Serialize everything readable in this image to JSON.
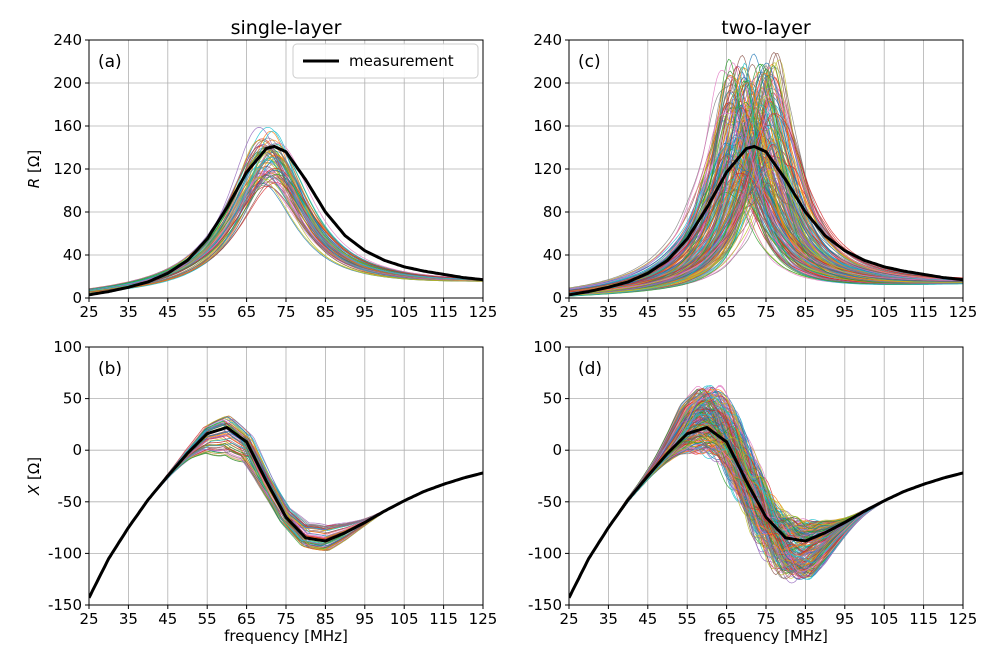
{
  "chart_data": [
    {
      "id": "a",
      "type": "line",
      "panel_label": "(a)",
      "title": "single-layer",
      "ylabel_var": "R",
      "ylabel_unit": " [Ω]",
      "xlabel": "",
      "xlim": [
        25,
        125
      ],
      "ylim": [
        0,
        240
      ],
      "xticks": [
        25,
        35,
        45,
        55,
        65,
        75,
        85,
        95,
        105,
        115,
        125
      ],
      "yticks": [
        0,
        40,
        80,
        120,
        160,
        200,
        240
      ],
      "grid": true,
      "legend": {
        "label": "measurement",
        "placement": "top-right"
      },
      "series": [
        {
          "name": "measurement",
          "x": [
            25,
            30,
            35,
            40,
            45,
            50,
            55,
            60,
            65,
            70,
            72,
            75,
            80,
            85,
            90,
            95,
            100,
            105,
            110,
            115,
            120,
            125
          ],
          "values": [
            3,
            6,
            10,
            15,
            23,
            35,
            55,
            84,
            117,
            139,
            141,
            136,
            110,
            80,
            58,
            44,
            35,
            29,
            25,
            22,
            19,
            17
          ]
        }
      ],
      "ensemble": {
        "count": 70,
        "peak_range": [
          102,
          161
        ],
        "peak_x_range": [
          68,
          73
        ],
        "style": "thin multicolor lines"
      }
    },
    {
      "id": "b",
      "type": "line",
      "panel_label": "(b)",
      "title": "",
      "ylabel_var": "X",
      "ylabel_unit": " [Ω]",
      "xlabel": "frequency [MHz]",
      "xlim": [
        25,
        125
      ],
      "ylim": [
        -150,
        100
      ],
      "xticks": [
        25,
        35,
        45,
        55,
        65,
        75,
        85,
        95,
        105,
        115,
        125
      ],
      "yticks": [
        -150,
        -100,
        -50,
        0,
        50,
        100
      ],
      "grid": true,
      "series": [
        {
          "name": "measurement",
          "x": [
            25,
            30,
            35,
            40,
            45,
            50,
            55,
            60,
            65,
            70,
            75,
            80,
            85,
            90,
            95,
            100,
            105,
            110,
            115,
            120,
            125
          ],
          "values": [
            -143,
            -105,
            -75,
            -48,
            -25,
            -3,
            16,
            22,
            8,
            -30,
            -65,
            -85,
            -88,
            -80,
            -70,
            -59,
            -49,
            -40,
            -33,
            -27,
            -22
          ]
        }
      ],
      "ensemble": {
        "count": 70,
        "peak_range": [
          -5,
          34
        ],
        "trough_range": [
          -98,
          -72
        ],
        "style": "thin multicolor lines"
      }
    },
    {
      "id": "c",
      "type": "line",
      "panel_label": "(c)",
      "title": "two-layer",
      "ylabel_var": "",
      "ylabel_unit": "",
      "xlabel": "",
      "xlim": [
        25,
        125
      ],
      "ylim": [
        0,
        240
      ],
      "xticks": [
        25,
        35,
        45,
        55,
        65,
        75,
        85,
        95,
        105,
        115,
        125
      ],
      "yticks": [
        0,
        40,
        80,
        120,
        160,
        200,
        240
      ],
      "grid": true,
      "series": [
        {
          "name": "measurement",
          "x": [
            25,
            30,
            35,
            40,
            45,
            50,
            55,
            60,
            65,
            70,
            72,
            75,
            80,
            85,
            90,
            95,
            100,
            105,
            110,
            115,
            120,
            125
          ],
          "values": [
            3,
            6,
            10,
            15,
            23,
            35,
            55,
            84,
            117,
            139,
            141,
            136,
            110,
            80,
            58,
            44,
            35,
            29,
            25,
            22,
            19,
            17
          ]
        }
      ],
      "ensemble": {
        "count": 220,
        "peak_range": [
          100,
          220
        ],
        "peak_x_range": [
          65,
          78
        ],
        "style": "thin multicolor lines"
      }
    },
    {
      "id": "d",
      "type": "line",
      "panel_label": "(d)",
      "title": "",
      "ylabel_var": "",
      "ylabel_unit": "",
      "xlabel": "frequency [MHz]",
      "xlim": [
        25,
        125
      ],
      "ylim": [
        -150,
        100
      ],
      "xticks": [
        25,
        35,
        45,
        55,
        65,
        75,
        85,
        95,
        105,
        115,
        125
      ],
      "yticks": [
        -150,
        -100,
        -50,
        0,
        50,
        100
      ],
      "grid": true,
      "series": [
        {
          "name": "measurement",
          "x": [
            25,
            30,
            35,
            40,
            45,
            50,
            55,
            60,
            65,
            70,
            75,
            80,
            85,
            90,
            95,
            100,
            105,
            110,
            115,
            120,
            125
          ],
          "values": [
            -143,
            -105,
            -75,
            -48,
            -25,
            -3,
            16,
            22,
            8,
            -30,
            -65,
            -85,
            -88,
            -80,
            -70,
            -59,
            -49,
            -40,
            -33,
            -27,
            -22
          ]
        }
      ],
      "ensemble": {
        "count": 220,
        "peak_range": [
          0,
          62
        ],
        "trough_range": [
          -125,
          -70
        ],
        "style": "thin multicolor lines"
      }
    }
  ],
  "colors": {
    "measurement": "#000000",
    "grid": "#b0b0b0",
    "palette": [
      "#1f77b4",
      "#ff7f0e",
      "#2ca02c",
      "#d62728",
      "#9467bd",
      "#8c564b",
      "#e377c2",
      "#7f7f7f",
      "#bcbd22",
      "#17becf"
    ]
  }
}
